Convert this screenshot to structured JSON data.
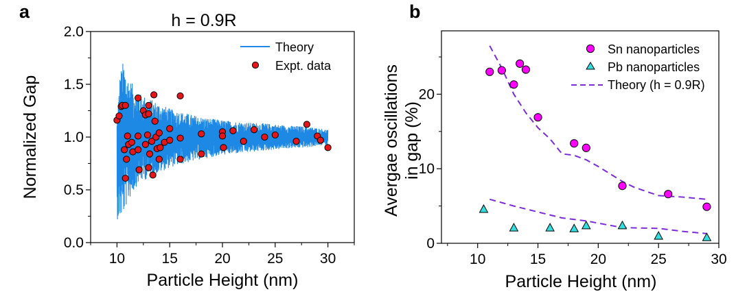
{
  "chart_data": [
    {
      "type": "line",
      "panel_label": "a",
      "title": "h = 0.9R",
      "xlabel": "Particle Height (nm)",
      "ylabel": "Normalized Gap",
      "xlim": [
        7.5,
        32.5
      ],
      "ylim": [
        0.0,
        2.0
      ],
      "xticks": [
        10,
        15,
        20,
        25,
        30
      ],
      "yticks": [
        "0.0",
        "0.5",
        "1.0",
        "1.5",
        "2.0"
      ],
      "grid": false,
      "legend_position": "top-right",
      "colors": {
        "theory": "#1e88e5",
        "expt": "#e5161b"
      },
      "series": [
        {
          "name": "Theory",
          "style": "line",
          "x_range": [
            10,
            30
          ],
          "envelope": {
            "x": [
              10,
              10.3,
              10.6,
              11,
              12,
              13,
              14,
              15,
              16,
              18,
              20,
              22,
              24,
              26,
              28,
              30
            ],
            "upper": [
              1.2,
              1.62,
              1.72,
              1.58,
              1.42,
              1.37,
              1.32,
              1.27,
              1.24,
              1.19,
              1.16,
              1.14,
              1.13,
              1.11,
              1.1,
              1.07
            ],
            "lower": [
              0.22,
              0.22,
              0.26,
              0.38,
              0.56,
              0.61,
              0.66,
              0.71,
              0.74,
              0.79,
              0.83,
              0.85,
              0.87,
              0.89,
              0.9,
              0.93
            ]
          }
        },
        {
          "name": "Expt. data",
          "style": "scatter",
          "points": [
            [
              10.0,
              1.16
            ],
            [
              10.2,
              1.2
            ],
            [
              10.4,
              1.29
            ],
            [
              10.5,
              1.3
            ],
            [
              10.8,
              1.3
            ],
            [
              10.8,
              0.61
            ],
            [
              10.7,
              0.88
            ],
            [
              10.9,
              0.79
            ],
            [
              11.0,
              1.01
            ],
            [
              11.1,
              0.93
            ],
            [
              11.4,
              0.95
            ],
            [
              11.5,
              0.86
            ],
            [
              12.0,
              1.37
            ],
            [
              12.0,
              1.01
            ],
            [
              12.0,
              0.88
            ],
            [
              12.1,
              0.69
            ],
            [
              12.5,
              1.25
            ],
            [
              12.7,
              1.21
            ],
            [
              12.7,
              0.93
            ],
            [
              12.9,
              1.02
            ],
            [
              13.0,
              1.3
            ],
            [
              13.0,
              1.22
            ],
            [
              13.0,
              0.71
            ],
            [
              13.1,
              0.84
            ],
            [
              13.3,
              0.96
            ],
            [
              13.4,
              0.64
            ],
            [
              13.5,
              1.4
            ],
            [
              13.6,
              1.15
            ],
            [
              13.7,
              1.0
            ],
            [
              13.8,
              0.89
            ],
            [
              14.0,
              1.04
            ],
            [
              14.0,
              0.79
            ],
            [
              14.1,
              0.9
            ],
            [
              14.5,
              0.95
            ],
            [
              15.0,
              1.08
            ],
            [
              15.0,
              0.97
            ],
            [
              16.0,
              1.39
            ],
            [
              16.0,
              0.99
            ],
            [
              16.0,
              0.79
            ],
            [
              18.0,
              1.03
            ],
            [
              18.0,
              0.84
            ],
            [
              20.0,
              1.05
            ],
            [
              20.0,
              1.01
            ],
            [
              20.1,
              0.9
            ],
            [
              21.0,
              1.06
            ],
            [
              22.0,
              0.96
            ],
            [
              23.0,
              1.07
            ],
            [
              24.0,
              1.0
            ],
            [
              25.0,
              1.02
            ],
            [
              27.0,
              0.96
            ],
            [
              28.0,
              1.12
            ],
            [
              29.0,
              1.01
            ],
            [
              29.3,
              0.97
            ],
            [
              30.0,
              0.9
            ]
          ]
        }
      ]
    },
    {
      "type": "scatter",
      "panel_label": "b",
      "title": "",
      "xlabel": "Particle Height (nm)",
      "ylabel": "Avergae oscillations in gap (%)",
      "ylabel_lines": [
        "Avergae oscillations",
        "in gap (%)"
      ],
      "xlim": [
        7,
        30
      ],
      "ylim": [
        0,
        28.5
      ],
      "xticks": [
        10,
        15,
        20,
        25,
        30
      ],
      "yticks": [
        "0",
        "10",
        "20"
      ],
      "grid": false,
      "legend_position": "top-right",
      "colors": {
        "sn": "#ff00ff",
        "pb": "#33dddd",
        "theory": "#7a2bd9"
      },
      "series": [
        {
          "name": "Sn nanoparticles",
          "style": "scatter-circle",
          "points": [
            [
              11.0,
              23.0
            ],
            [
              12.0,
              23.2
            ],
            [
              13.0,
              21.3
            ],
            [
              13.5,
              24.1
            ],
            [
              14.0,
              23.3
            ],
            [
              15.0,
              16.9
            ],
            [
              18.0,
              13.4
            ],
            [
              19.0,
              12.8
            ],
            [
              22.0,
              7.7
            ],
            [
              25.8,
              6.6
            ],
            [
              29.0,
              4.9
            ]
          ]
        },
        {
          "name": "Pb nanoparticles",
          "style": "scatter-triangle",
          "points": [
            [
              10.5,
              4.6
            ],
            [
              13.0,
              2.1
            ],
            [
              16.0,
              2.1
            ],
            [
              18.0,
              2.0
            ],
            [
              19.0,
              2.4
            ],
            [
              22.0,
              2.4
            ],
            [
              25.0,
              1.0
            ],
            [
              29.0,
              0.8
            ]
          ]
        },
        {
          "name": "Theory (h = 0.9R)",
          "style": "dashed-line",
          "segments": [
            [
              [
                11.0,
                26.5
              ],
              [
                12.0,
                23.5
              ],
              [
                13.0,
                20.0
              ],
              [
                14.0,
                17.5
              ],
              [
                15.0,
                15.5
              ],
              [
                16.0,
                14.0
              ],
              [
                17.0,
                12.0
              ],
              [
                18.0,
                11.8
              ],
              [
                19.0,
                11.2
              ],
              [
                20.0,
                10.3
              ],
              [
                22.0,
                8.3
              ],
              [
                23.0,
                7.5
              ],
              [
                25.0,
                6.4
              ],
              [
                27.0,
                6.2
              ],
              [
                29.0,
                5.9
              ]
            ],
            [
              [
                11.0,
                5.9
              ],
              [
                13.0,
                5.0
              ],
              [
                15.0,
                4.2
              ],
              [
                17.0,
                3.4
              ],
              [
                19.0,
                3.0
              ],
              [
                22.0,
                2.1
              ],
              [
                25.0,
                2.0
              ],
              [
                27.0,
                1.6
              ],
              [
                29.0,
                1.3
              ]
            ]
          ]
        }
      ]
    }
  ]
}
